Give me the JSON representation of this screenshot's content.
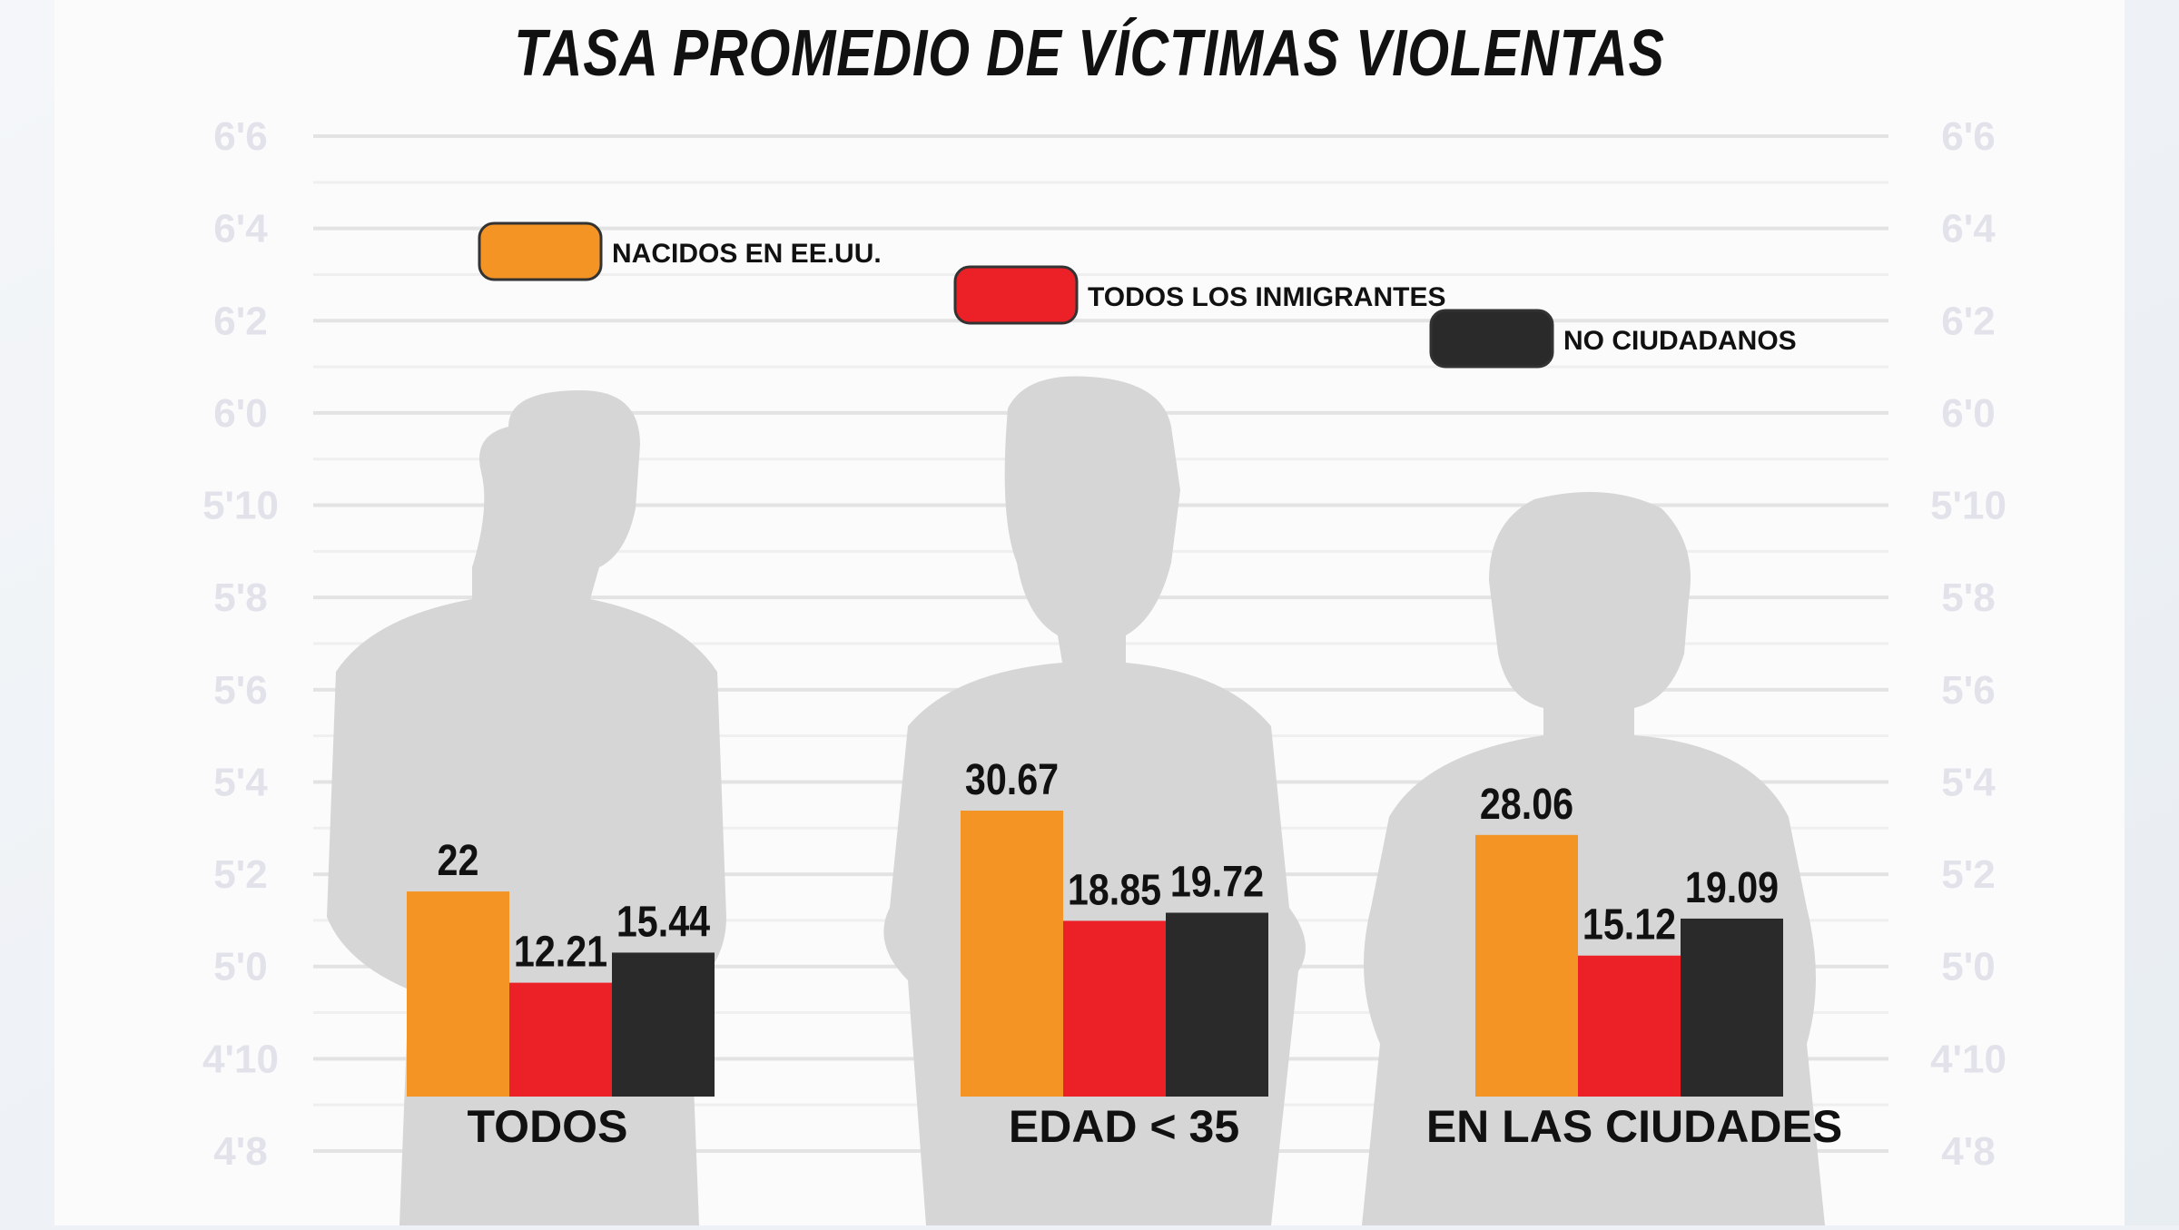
{
  "chart_data": {
    "type": "bar",
    "title": "TASA PROMEDIO DE VÍCTIMAS VIOLENTAS",
    "categories": [
      "TODOS",
      "EDAD < 35",
      "EN LAS CIUDADES"
    ],
    "series": [
      {
        "name": "NACIDOS EN EE.UU.",
        "color": "#f39424",
        "values": [
          22,
          30.67,
          28.06
        ]
      },
      {
        "name": "TODOS LOS INMIGRANTES",
        "color": "#ec2127",
        "values": [
          12.21,
          18.85,
          15.12
        ]
      },
      {
        "name": "NO CIUDADANOS",
        "color": "#2a2a2a",
        "values": [
          15.44,
          19.72,
          19.09
        ]
      }
    ],
    "value_labels": [
      [
        "22",
        "30.67",
        "28.06"
      ],
      [
        "12.21",
        "18.85",
        "15.12"
      ],
      [
        "15.44",
        "19.72",
        "19.09"
      ]
    ],
    "ylim": [
      0,
      45
    ],
    "grid": true,
    "legend": "top"
  },
  "height_scale": [
    "6'6",
    "6'4",
    "6'2",
    "6'0",
    "5'10",
    "5'8",
    "5'6",
    "5'4",
    "5'2",
    "5'0",
    "4'10",
    "4'8"
  ]
}
